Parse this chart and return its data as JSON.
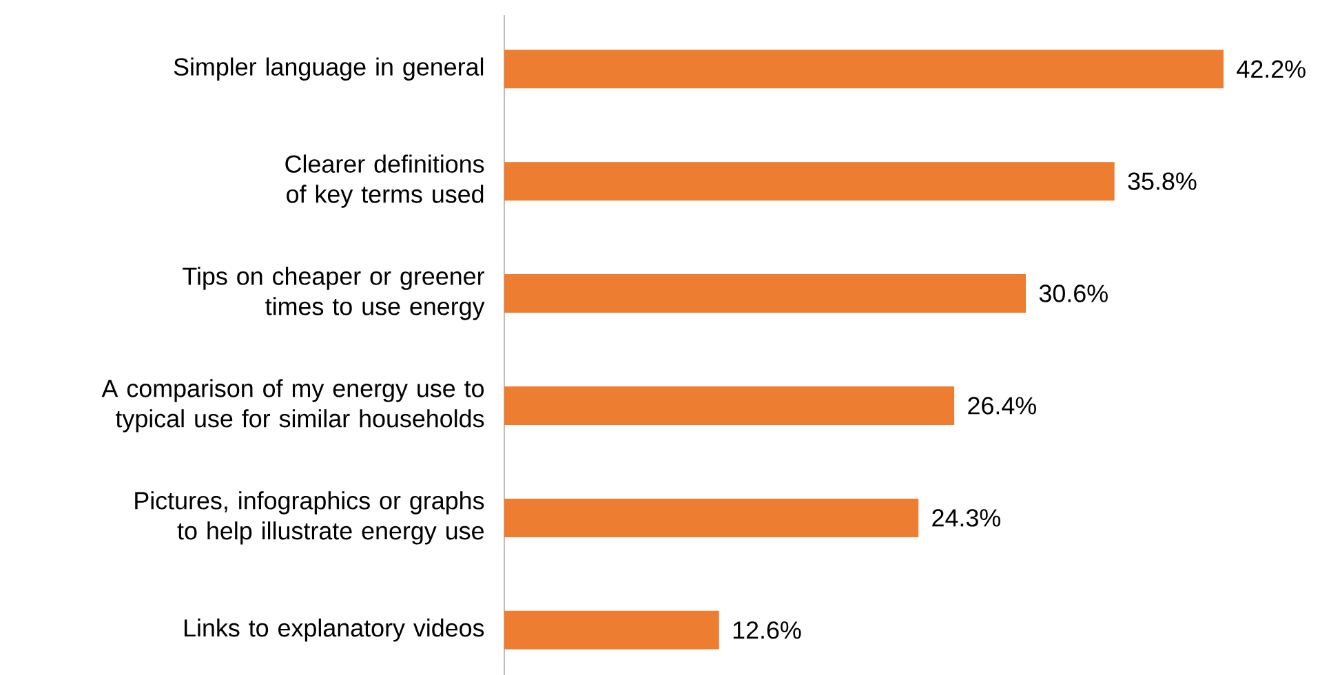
{
  "chart_data": {
    "type": "bar",
    "orientation": "horizontal",
    "categories": [
      "Simpler language in general",
      "Clearer definitions of key terms used",
      "Tips on cheaper or greener times to use energy",
      "A comparison of my energy use to typical use for similar households",
      "Pictures, infographics or graphs to help illustrate energy use",
      "Links to explanatory videos"
    ],
    "values": [
      42.2,
      35.8,
      30.6,
      26.4,
      24.3,
      12.6
    ],
    "value_labels": [
      "42.2%",
      "35.8%",
      "30.6%",
      "26.4%",
      "24.3%",
      "12.6%"
    ],
    "color": "#ed7d31"
  }
}
